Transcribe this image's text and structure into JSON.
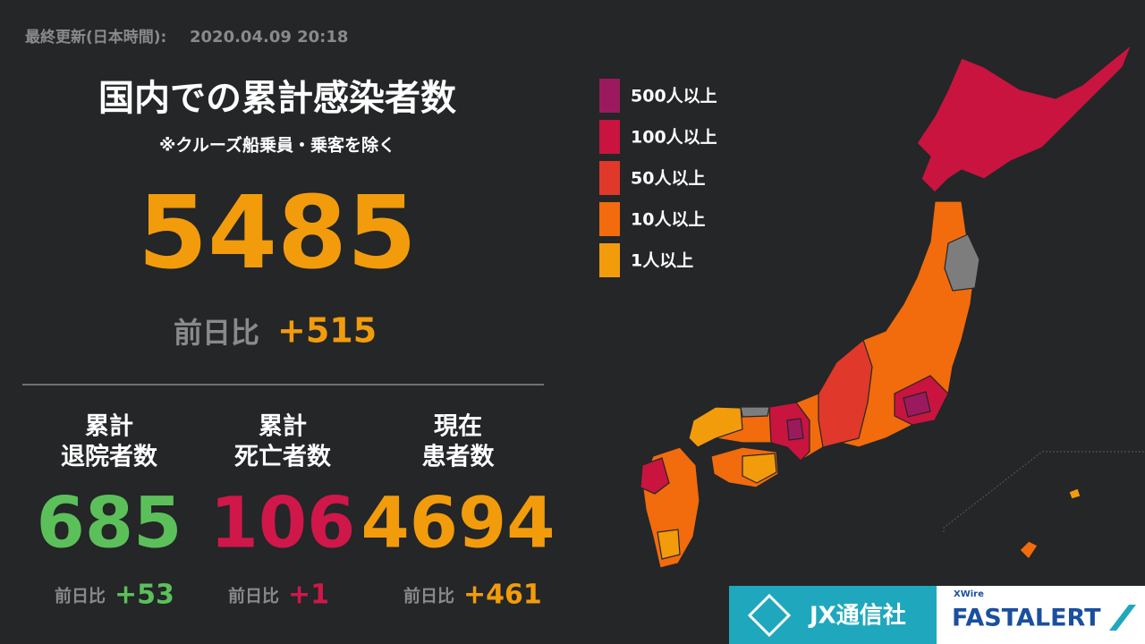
{
  "header": {
    "updated_label": "最終更新(日本時間):",
    "updated_at": "2020.04.09 20:18"
  },
  "total": {
    "title": "国内での累計感染者数",
    "note": "※クルーズ船乗員・乗客を除く",
    "value": 5485,
    "change_label": "前日比",
    "change": "+515"
  },
  "stats": [
    {
      "label_lines": [
        "累計",
        "退院者数"
      ],
      "value": 685,
      "change_label": "前日比",
      "change": "+53",
      "color": "#5cc05a"
    },
    {
      "label_lines": [
        "累計",
        "死亡者数"
      ],
      "value": 106,
      "change_label": "前日比",
      "change": "+1",
      "color": "#d0174a"
    },
    {
      "label_lines": [
        "現在",
        "患者数"
      ],
      "value": 4694,
      "change_label": "前日比",
      "change": "+461",
      "color": "#f29c0b"
    }
  ],
  "legend": [
    {
      "label": "500人以上",
      "color": "#9b1a5e"
    },
    {
      "label": "100人以上",
      "color": "#c8143e"
    },
    {
      "label": "50人以上",
      "color": "#e0382a"
    },
    {
      "label": "10人以上",
      "color": "#f26b0c"
    },
    {
      "label": "1人以上",
      "color": "#f29c0b"
    }
  ],
  "footer": {
    "brand": "JX通信社",
    "product_top": "XWire",
    "product": "FASTALERT"
  }
}
